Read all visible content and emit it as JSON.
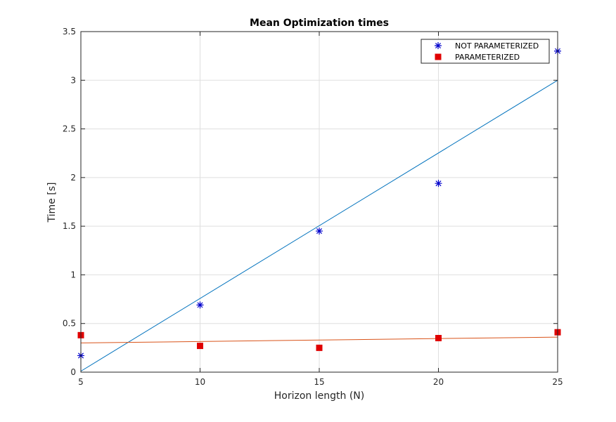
{
  "chart_data": {
    "type": "scatter",
    "title": "Mean Optimization times",
    "xlabel": "Horizon length (N)",
    "ylabel": "Time [s]",
    "xlim": [
      5,
      25
    ],
    "ylim": [
      0,
      3.5
    ],
    "xticks": [
      5,
      10,
      15,
      20,
      25
    ],
    "yticks": [
      0,
      0.5,
      1,
      1.5,
      2,
      2.5,
      3,
      3.5
    ],
    "xtick_labels": [
      "5",
      "10",
      "15",
      "20",
      "25"
    ],
    "ytick_labels": [
      "0",
      "0.5",
      "1",
      "1.5",
      "2",
      "2.5",
      "3",
      "3.5"
    ],
    "grid": true,
    "legend_position": "top-right",
    "series": [
      {
        "name": "NOT PARAMETERIZED",
        "marker": "asterisk",
        "color": "#0000cc",
        "x": [
          5,
          10,
          15,
          20,
          25
        ],
        "y": [
          0.17,
          0.69,
          1.45,
          1.94,
          3.3
        ],
        "fit": {
          "x": [
            5,
            25
          ],
          "y": [
            0.01,
            3.0
          ],
          "color": "#0072bd"
        }
      },
      {
        "name": "PARAMETERIZED",
        "marker": "square",
        "color": "#e00000",
        "x": [
          5,
          10,
          15,
          20,
          25
        ],
        "y": [
          0.38,
          0.27,
          0.25,
          0.35,
          0.41
        ],
        "fit": {
          "x": [
            5,
            25
          ],
          "y": [
            0.3,
            0.36
          ],
          "color": "#d95319"
        }
      }
    ]
  }
}
